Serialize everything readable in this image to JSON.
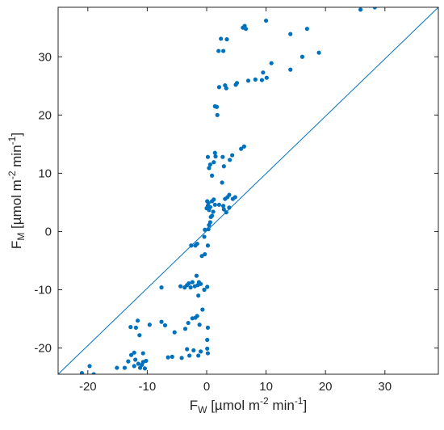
{
  "chart_data": {
    "type": "scatter",
    "xlabel": {
      "base": "F",
      "sub": "W",
      "unit_pre": " [µmol m",
      "sup1": "-2",
      "unit_mid": " min",
      "sup2": "-1",
      "unit_post": "]"
    },
    "ylabel": {
      "base": "F",
      "sub": "M",
      "unit_pre": " [µmol m",
      "sup1": "-2",
      "unit_mid": " min",
      "sup2": "-1",
      "unit_post": "]"
    },
    "xlim": [
      -25,
      39
    ],
    "ylim": [
      -24.5,
      38.5
    ],
    "xticks": [
      -20,
      -10,
      0,
      10,
      20,
      30
    ],
    "yticks": [
      -20,
      -10,
      0,
      10,
      20,
      30
    ],
    "xtick_labels": [
      "-20",
      "-10",
      "0",
      "10",
      "20",
      "30"
    ],
    "ytick_labels": [
      "-20",
      "-10",
      "0",
      "10",
      "20",
      "30"
    ],
    "grid": false,
    "reference_line": {
      "type": "identity",
      "from": [
        -25,
        -24.5
      ],
      "to": [
        39,
        38.5
      ]
    },
    "colors": {
      "points": "#0072BD",
      "line": "#0072BD",
      "axes": "#262626"
    },
    "series": [
      {
        "points": [
          [
            -21.0,
            -24.3
          ],
          [
            -19.7,
            -23.1
          ],
          [
            -19.0,
            -24.5
          ],
          [
            -15.1,
            -23.4
          ],
          [
            -13.8,
            -23.4
          ],
          [
            -13.2,
            -22.3
          ],
          [
            -12.7,
            -21.2
          ],
          [
            -12.2,
            -23.1
          ],
          [
            -12.0,
            -22.0
          ],
          [
            -11.5,
            -22.7
          ],
          [
            -11.2,
            -23.4
          ],
          [
            -10.9,
            -22.9
          ],
          [
            -10.7,
            -22.4
          ],
          [
            -10.4,
            -23.5
          ],
          [
            -10.2,
            -22.2
          ],
          [
            -12.2,
            -20.8
          ],
          [
            -10.7,
            -20.9
          ],
          [
            -12.8,
            -16.4
          ],
          [
            -11.9,
            -16.5
          ],
          [
            -11.3,
            -17.8
          ],
          [
            -11.6,
            -15.3
          ],
          [
            -9.6,
            -16.0
          ],
          [
            -7.6,
            -15.5
          ],
          [
            -7.0,
            -16.1
          ],
          [
            -5.4,
            -17.3
          ],
          [
            -6.5,
            -21.6
          ],
          [
            -5.8,
            -21.5
          ],
          [
            -4.2,
            -21.7
          ],
          [
            -3.3,
            -20.2
          ],
          [
            -2.9,
            -21.3
          ],
          [
            -2.2,
            -20.4
          ],
          [
            -1.4,
            -21.3
          ],
          [
            -1.0,
            -20.6
          ],
          [
            0.1,
            -18.6
          ],
          [
            0.1,
            -20.1
          ],
          [
            0.2,
            -20.9
          ],
          [
            -3.6,
            -16.7
          ],
          [
            -3.1,
            -15.7
          ],
          [
            -2.4,
            -14.9
          ],
          [
            -1.9,
            -14.8
          ],
          [
            -1.6,
            -14.5
          ],
          [
            -1.2,
            -16.0
          ],
          [
            -0.7,
            -13.4
          ],
          [
            0.2,
            -16.5
          ],
          [
            -7.6,
            -9.6
          ],
          [
            -4.4,
            -9.4
          ],
          [
            -3.7,
            -9.6
          ],
          [
            -3.3,
            -9.2
          ],
          [
            -3.0,
            -8.9
          ],
          [
            -2.7,
            -9.6
          ],
          [
            -2.4,
            -8.7
          ],
          [
            -2.0,
            -9.4
          ],
          [
            -1.7,
            -7.6
          ],
          [
            -1.5,
            -9.2
          ],
          [
            -1.3,
            -8.7
          ],
          [
            -1.0,
            -9.0
          ],
          [
            -0.4,
            -10.0
          ],
          [
            0.1,
            -9.5
          ],
          [
            -1.4,
            -11.0
          ],
          [
            -2.6,
            -2.4
          ],
          [
            -1.9,
            -2.4
          ],
          [
            -1.6,
            -2.1
          ],
          [
            -0.8,
            -4.2
          ],
          [
            -0.3,
            -3.9
          ],
          [
            0.2,
            -2.4
          ],
          [
            -0.4,
            -0.9
          ],
          [
            -0.3,
            0.3
          ],
          [
            0.3,
            0.4
          ],
          [
            0.4,
            1.1
          ],
          [
            0.6,
            1.6
          ],
          [
            0.7,
            2.5
          ],
          [
            0.9,
            2.7
          ],
          [
            1.1,
            3.4
          ],
          [
            0.4,
            3.7
          ],
          [
            0.0,
            4.0
          ],
          [
            0.2,
            4.4
          ],
          [
            0.6,
            4.2
          ],
          [
            0.3,
            4.9
          ],
          [
            0.9,
            5.2
          ],
          [
            1.2,
            5.5
          ],
          [
            0.1,
            5.2
          ],
          [
            1.4,
            4.6
          ],
          [
            2.1,
            4.6
          ],
          [
            2.8,
            4.4
          ],
          [
            3.1,
            5.6
          ],
          [
            3.5,
            5.9
          ],
          [
            3.8,
            6.3
          ],
          [
            4.4,
            5.6
          ],
          [
            4.8,
            5.9
          ],
          [
            2.9,
            3.8
          ],
          [
            3.3,
            3.3
          ],
          [
            3.8,
            4.1
          ],
          [
            0.2,
            12.8
          ],
          [
            0.4,
            10.9
          ],
          [
            0.6,
            11.5
          ],
          [
            0.9,
            9.6
          ],
          [
            1.2,
            11.9
          ],
          [
            1.5,
            12.9
          ],
          [
            1.4,
            13.5
          ],
          [
            2.7,
            12.8
          ],
          [
            3.9,
            12.3
          ],
          [
            4.3,
            13.1
          ],
          [
            2.9,
            11.2
          ],
          [
            5.8,
            14.2
          ],
          [
            6.3,
            14.6
          ],
          [
            2.6,
            8.4
          ],
          [
            1.4,
            21.5
          ],
          [
            1.7,
            21.4
          ],
          [
            1.8,
            20.0
          ],
          [
            2.1,
            24.8
          ],
          [
            3.1,
            25.1
          ],
          [
            3.3,
            24.6
          ],
          [
            4.9,
            25.2
          ],
          [
            5.1,
            25.5
          ],
          [
            7.0,
            25.9
          ],
          [
            8.2,
            26.1
          ],
          [
            9.3,
            26.0
          ],
          [
            9.5,
            27.3
          ],
          [
            10.1,
            26.4
          ],
          [
            10.9,
            28.9
          ],
          [
            14.1,
            27.8
          ],
          [
            2.0,
            31.0
          ],
          [
            2.4,
            33.1
          ],
          [
            2.8,
            31.0
          ],
          [
            3.4,
            33.0
          ],
          [
            6.1,
            35.0
          ],
          [
            6.4,
            35.3
          ],
          [
            6.6,
            34.8
          ],
          [
            10.0,
            36.2
          ],
          [
            14.1,
            33.9
          ],
          [
            16.1,
            30.0
          ],
          [
            16.9,
            34.8
          ],
          [
            18.9,
            30.7
          ],
          [
            25.9,
            38.1
          ],
          [
            28.3,
            38.5
          ]
        ]
      }
    ]
  }
}
